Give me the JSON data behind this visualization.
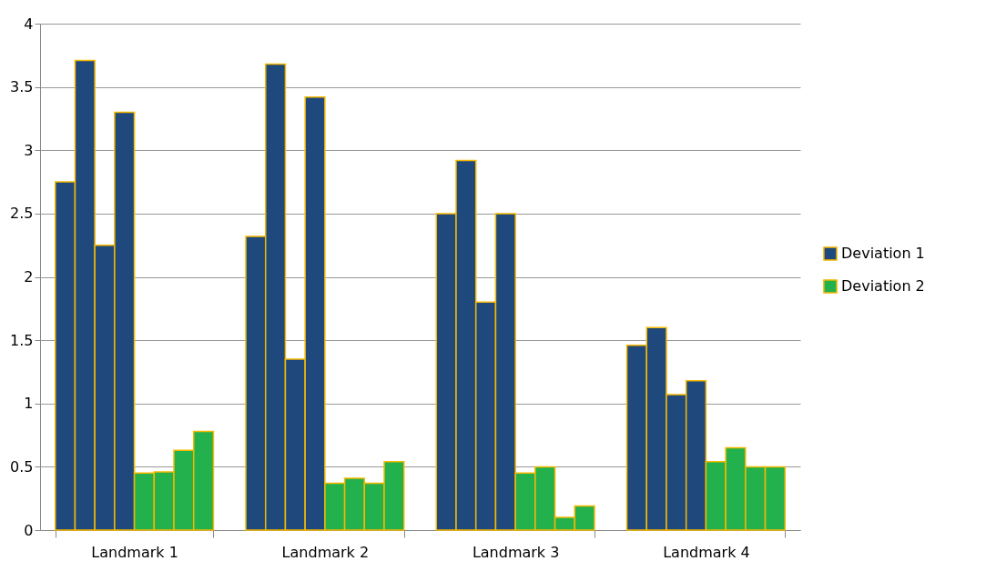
{
  "chart_data": {
    "type": "bar",
    "categories": [
      "Landmark 1",
      "Landmark 2",
      "Landmark 3",
      "Landmark 4"
    ],
    "series": [
      {
        "name": "Deviation 1",
        "color": "#1f497d",
        "values": [
          2.75,
          2.32,
          2.5,
          1.46
        ]
      },
      {
        "color": "#1f497d",
        "values": [
          3.71,
          3.68,
          2.92,
          1.6
        ]
      },
      {
        "color": "#1f497d",
        "values": [
          2.25,
          1.35,
          1.8,
          1.07
        ]
      },
      {
        "color": "#1f497d",
        "values": [
          3.3,
          3.42,
          2.5,
          1.18
        ]
      },
      {
        "name": "Deviation 2",
        "color": "#22b14c",
        "values": [
          0.45,
          0.37,
          0.45,
          0.54
        ]
      },
      {
        "color": "#22b14c",
        "values": [
          0.46,
          0.41,
          0.5,
          0.65
        ]
      },
      {
        "color": "#22b14c",
        "values": [
          0.63,
          0.37,
          0.1,
          0.5
        ]
      },
      {
        "color": "#22b14c",
        "values": [
          0.78,
          0.54,
          0.19,
          0.5
        ]
      }
    ],
    "ylim": [
      0,
      4
    ],
    "yticks": [
      0,
      0.5,
      1,
      1.5,
      2,
      2.5,
      3,
      3.5,
      4
    ],
    "grid": "y",
    "legend": "right"
  }
}
